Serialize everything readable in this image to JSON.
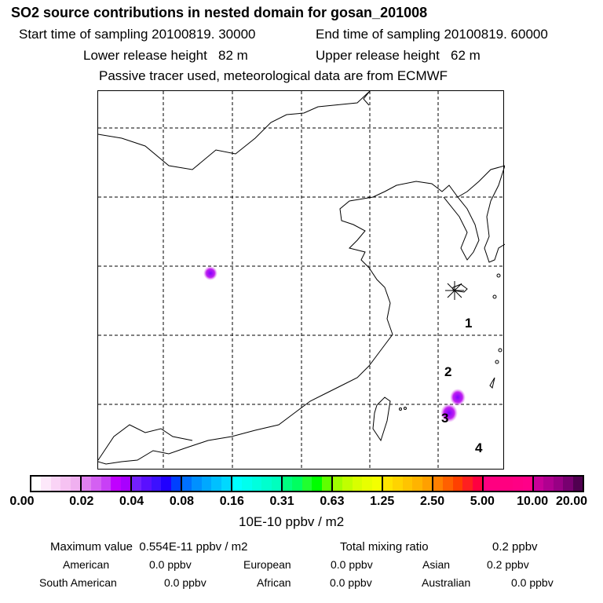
{
  "header": {
    "title": "SO2 source contributions in nested domain for gosan_201008",
    "start_time": "Start time of sampling 20100819. 30000",
    "end_time": "End time of sampling 20100819. 60000",
    "lower_release": "Lower release height   82 m",
    "upper_release": "Upper release height   62 m",
    "tracer_note": "Passive tracer used, meteorological data are from ECMWF"
  },
  "map": {
    "region_labels": [
      "1",
      "2",
      "3",
      "4"
    ],
    "plume_color": "#a020f0"
  },
  "colorbar": {
    "ticks": [
      "0.00",
      "0.02",
      "0.04",
      "0.08",
      "0.16",
      "0.31",
      "0.63",
      "1.25",
      "2.50",
      "5.00",
      "10.00",
      "20.00"
    ],
    "units": "10E-10 ppbv / m2",
    "groups": [
      [
        "#ffffff",
        "#fde8fa",
        "#fad4f6",
        "#f6c2f2",
        "#f0b0f0"
      ],
      [
        "#e080f0",
        "#d460f2",
        "#c840f6",
        "#c000ff",
        "#a800ff"
      ],
      [
        "#7420ff",
        "#5a10ff",
        "#3c10ff",
        "#2000ff",
        "#0040ff"
      ],
      [
        "#0070ff",
        "#0090ff",
        "#00a8ff",
        "#00c0ff",
        "#00d8ff"
      ],
      [
        "#00ffff",
        "#00ffee",
        "#00ffde",
        "#00ffce",
        "#00ffbe"
      ],
      [
        "#00ff80",
        "#00ff60",
        "#20ff30",
        "#00ff00",
        "#60ff00"
      ],
      [
        "#a0ff00",
        "#c0ff00",
        "#d8ff00",
        "#e8ff00",
        "#f4ff00"
      ],
      [
        "#ffe400",
        "#ffd400",
        "#ffc400",
        "#ffb400",
        "#ffa000"
      ],
      [
        "#ff8000",
        "#ff6000",
        "#ff4000",
        "#ff2020",
        "#ff0040"
      ],
      [
        "#ff0080",
        "#ff0080",
        "#ff0080",
        "#ff0084",
        "#ff0088"
      ],
      [
        "#c80098",
        "#b00090",
        "#980084",
        "#780070",
        "#500050"
      ]
    ]
  },
  "summary": {
    "max_value": "Maximum value  0.554E-11 ppbv / m2",
    "total_label": "Total mixing ratio",
    "total_value": "0.2 ppbv",
    "regions": [
      {
        "name": "American",
        "value": "0.0 ppbv"
      },
      {
        "name": "European",
        "value": "0.0 ppbv"
      },
      {
        "name": "Asian",
        "value": "0.2 ppbv"
      },
      {
        "name": "South American",
        "value": "0.0 ppbv"
      },
      {
        "name": "African",
        "value": "0.0 ppbv"
      },
      {
        "name": "Australian",
        "value": "0.0 ppbv"
      }
    ]
  }
}
